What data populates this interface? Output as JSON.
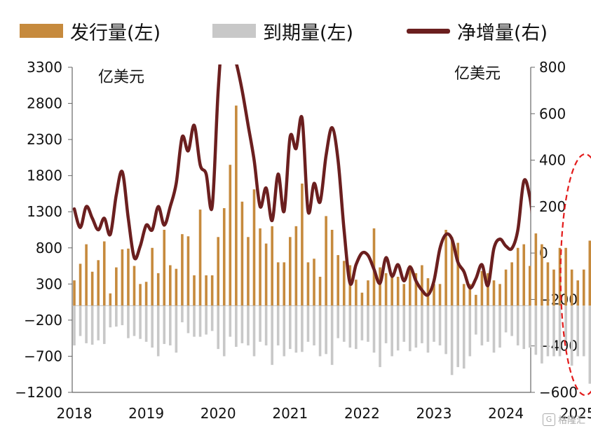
{
  "legend": {
    "issue_label": "发行量(左)",
    "maturity_label": "到期量(左)",
    "net_label": "净增量(右)"
  },
  "units": {
    "left": "亿美元",
    "right": "亿美元"
  },
  "watermark": {
    "text": "格隆汇",
    "logo": "G"
  },
  "colors": {
    "issue": "#c68a3d",
    "maturity": "#c8c8c8",
    "net": "#6b1f1f",
    "highlight": "#e31b1b",
    "axis": "#666666"
  },
  "chart_data": {
    "type": "bar",
    "left_axis": {
      "ticks": [
        3300,
        2800,
        2300,
        1800,
        1300,
        800,
        300,
        -200,
        -700,
        -1200
      ],
      "range": [
        -1200,
        3300
      ]
    },
    "right_axis": {
      "ticks": [
        800,
        600,
        400,
        200,
        0,
        -200,
        -400,
        -600
      ],
      "range": [
        -600,
        800
      ]
    },
    "x_ticks": [
      "2018",
      "2019",
      "2020",
      "2021",
      "2022",
      "2023",
      "2024",
      "2025"
    ],
    "months": [
      "2018-01",
      "2018-02",
      "2018-03",
      "2018-04",
      "2018-05",
      "2018-06",
      "2018-07",
      "2018-08",
      "2018-09",
      "2018-10",
      "2018-11",
      "2018-12",
      "2019-01",
      "2019-02",
      "2019-03",
      "2019-04",
      "2019-05",
      "2019-06",
      "2019-07",
      "2019-08",
      "2019-09",
      "2019-10",
      "2019-11",
      "2019-12",
      "2020-01",
      "2020-02",
      "2020-03",
      "2020-04",
      "2020-05",
      "2020-06",
      "2020-07",
      "2020-08",
      "2020-09",
      "2020-10",
      "2020-11",
      "2020-12",
      "2021-01",
      "2021-02",
      "2021-03",
      "2021-04",
      "2021-05",
      "2021-06",
      "2021-07",
      "2021-08",
      "2021-09",
      "2021-10",
      "2021-11",
      "2021-12",
      "2022-01",
      "2022-02",
      "2022-03",
      "2022-04",
      "2022-05",
      "2022-06",
      "2022-07",
      "2022-08",
      "2022-09",
      "2022-10",
      "2022-11",
      "2022-12",
      "2023-01",
      "2023-02",
      "2023-03",
      "2023-04",
      "2023-05",
      "2023-06",
      "2023-07",
      "2023-08",
      "2023-09",
      "2023-10",
      "2023-11",
      "2023-12",
      "2024-01",
      "2024-02",
      "2024-03",
      "2024-04",
      "2024-05",
      "2024-06",
      "2024-07",
      "2024-08",
      "2024-09",
      "2024-10",
      "2024-11",
      "2024-12",
      "2025-01",
      "2025-02",
      "2025-03",
      "2025-04"
    ],
    "series": [
      {
        "name": "发行量(左)",
        "axis": "left",
        "kind": "bar",
        "values": [
          350,
          580,
          850,
          470,
          630,
          890,
          170,
          530,
          780,
          790,
          550,
          300,
          330,
          800,
          450,
          1050,
          560,
          510,
          990,
          960,
          420,
          1330,
          420,
          420,
          950,
          1350,
          1950,
          2770,
          1440,
          950,
          1610,
          1070,
          860,
          1100,
          600,
          600,
          950,
          1100,
          1690,
          600,
          650,
          400,
          1240,
          1050,
          700,
          620,
          560,
          360,
          180,
          350,
          1070,
          530,
          450,
          400,
          400,
          300,
          560,
          450,
          560,
          380,
          300,
          300,
          1050,
          950,
          870,
          300,
          300,
          150,
          480,
          450,
          350,
          300,
          500,
          600,
          800,
          850,
          550,
          1000,
          850,
          600,
          500,
          800,
          800,
          500,
          350,
          500,
          900,
          200
        ]
      },
      {
        "name": "到期量(左)",
        "axis": "left",
        "kind": "bar",
        "values": [
          -550,
          -420,
          -520,
          -540,
          -480,
          -530,
          -300,
          -290,
          -270,
          -450,
          -420,
          -460,
          -500,
          -580,
          -700,
          -530,
          -550,
          -650,
          -230,
          -380,
          -430,
          -430,
          -400,
          -350,
          -600,
          -700,
          -430,
          -570,
          -520,
          -550,
          -700,
          -500,
          -550,
          -820,
          -550,
          -700,
          -600,
          -650,
          -640,
          -500,
          -550,
          -700,
          -670,
          -820,
          -450,
          -500,
          -580,
          -600,
          -480,
          -500,
          -650,
          -850,
          -520,
          -700,
          -620,
          -500,
          -630,
          -580,
          -520,
          -650,
          -500,
          -550,
          -670,
          -960,
          -850,
          -870,
          -700,
          -400,
          -550,
          -500,
          -650,
          -580,
          -370,
          -420,
          -550,
          -600,
          -580,
          -680,
          -800,
          -700,
          -700,
          -700,
          -480,
          -830,
          -700,
          -700,
          -1080,
          -880
        ]
      },
      {
        "name": "净增量(右)",
        "axis": "right",
        "kind": "line",
        "values": [
          190,
          110,
          200,
          150,
          100,
          150,
          80,
          250,
          350,
          150,
          -20,
          30,
          120,
          100,
          200,
          120,
          200,
          300,
          500,
          440,
          550,
          380,
          340,
          200,
          700,
          1000,
          900,
          820,
          700,
          550,
          400,
          200,
          280,
          140,
          340,
          180,
          500,
          450,
          580,
          180,
          300,
          220,
          420,
          540,
          400,
          100,
          -130,
          -50,
          0,
          -10,
          -70,
          -130,
          -20,
          -100,
          -50,
          -120,
          -60,
          -120,
          -160,
          -180,
          -120,
          20,
          80,
          60,
          -40,
          -80,
          -150,
          -110,
          -50,
          -140,
          20,
          60,
          30,
          20,
          100,
          310,
          240,
          60,
          20,
          180,
          190,
          -50,
          -80,
          -40,
          240,
          -120,
          -30,
          -130
        ]
      }
    ],
    "highlight": {
      "shape": "dashed-ellipse",
      "covers": [
        "2024-12",
        "2025-04"
      ]
    }
  }
}
